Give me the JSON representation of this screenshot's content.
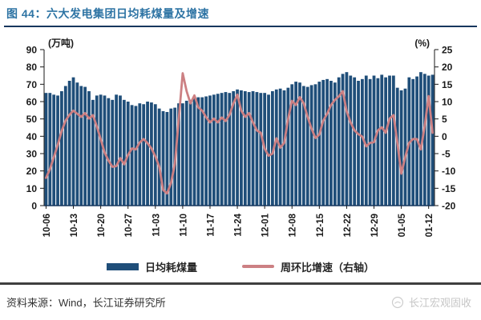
{
  "figure": {
    "title": "图 44：六大发电集团日均耗煤量及增速",
    "title_color": "#2E74A4",
    "source": "资料来源：Wind，长江证券研究所",
    "watermark": "长江宏观固收"
  },
  "chart_data": {
    "type": "bar+line combo",
    "grid": "off",
    "legend_position": "bottom",
    "left_axis": {
      "label": "(万吨)",
      "min": 0,
      "max": 90,
      "step": 10,
      "ticks": [
        90,
        80,
        70,
        60,
        50,
        40,
        30,
        20,
        10,
        0
      ]
    },
    "right_axis": {
      "label": "(%)",
      "min": -20,
      "max": 25,
      "step": 5,
      "ticks": [
        25,
        20,
        15,
        10,
        5,
        0,
        -5,
        -10,
        -15,
        -20
      ]
    },
    "x_tick_interval": 7,
    "x_tick_labels": [
      "10-06",
      "10-13",
      "10-20",
      "10-27",
      "11-03",
      "11-10",
      "11-17",
      "11-24",
      "12-01",
      "12-08",
      "12-15",
      "12-22",
      "12-29",
      "01-05",
      "01-12"
    ],
    "categories": [
      "10-06",
      "10-07",
      "10-08",
      "10-09",
      "10-10",
      "10-11",
      "10-12",
      "10-13",
      "10-14",
      "10-15",
      "10-16",
      "10-17",
      "10-18",
      "10-19",
      "10-20",
      "10-21",
      "10-22",
      "10-23",
      "10-24",
      "10-25",
      "10-26",
      "10-27",
      "10-28",
      "10-29",
      "10-30",
      "10-31",
      "11-01",
      "11-02",
      "11-03",
      "11-04",
      "11-05",
      "11-06",
      "11-07",
      "11-08",
      "11-09",
      "11-10",
      "11-11",
      "11-12",
      "11-13",
      "11-14",
      "11-15",
      "11-16",
      "11-17",
      "11-18",
      "11-19",
      "11-20",
      "11-21",
      "11-22",
      "11-23",
      "11-24",
      "11-25",
      "11-26",
      "11-27",
      "11-28",
      "11-29",
      "11-30",
      "12-01",
      "12-02",
      "12-03",
      "12-04",
      "12-05",
      "12-06",
      "12-07",
      "12-08",
      "12-09",
      "12-10",
      "12-11",
      "12-12",
      "12-13",
      "12-14",
      "12-15",
      "12-16",
      "12-17",
      "12-18",
      "12-19",
      "12-20",
      "12-21",
      "12-22",
      "12-23",
      "12-24",
      "12-25",
      "12-26",
      "12-27",
      "12-28",
      "12-29",
      "12-30",
      "12-31",
      "01-01",
      "01-02",
      "01-03",
      "01-04",
      "01-05",
      "01-06",
      "01-07",
      "01-08",
      "01-09",
      "01-10",
      "01-11",
      "01-12",
      "01-13"
    ],
    "series": [
      {
        "name": "日均耗煤量",
        "type": "bar",
        "axis": "left",
        "color": "#1F4E79",
        "values": [
          65,
          65,
          64,
          63.5,
          66,
          69,
          72,
          74,
          71,
          69,
          68.5,
          66,
          61,
          63.5,
          64,
          63.5,
          62,
          61,
          64,
          63.5,
          61,
          60,
          58,
          57.5,
          59,
          58.5,
          60,
          59.5,
          58.5,
          56,
          54.5,
          54,
          56,
          56.5,
          59,
          59,
          60.5,
          61,
          62,
          62.5,
          62.5,
          63,
          63.5,
          64,
          64.5,
          65,
          65.5,
          65,
          66,
          67,
          66.5,
          66,
          65.5,
          66,
          65.5,
          65,
          65,
          64,
          66,
          67,
          67.5,
          66.5,
          68,
          70,
          71.5,
          71,
          69,
          68.5,
          69.5,
          70,
          71.5,
          72.5,
          73,
          72,
          71,
          74,
          76,
          77,
          75,
          74,
          72,
          73,
          75,
          73,
          75,
          73.5,
          75.5,
          74,
          75,
          75,
          68,
          66.5,
          67.5,
          74,
          73,
          74.5,
          77,
          76,
          75,
          75.5
        ]
      },
      {
        "name": "周环比增速（右轴）",
        "type": "line",
        "axis": "right",
        "color": "#CC8083",
        "values": [
          -12,
          -9.5,
          -6,
          -2.5,
          1.5,
          4.5,
          6.2,
          7.4,
          6.5,
          5.6,
          6.7,
          5.1,
          6.1,
          2.9,
          -0.8,
          -4.7,
          -7,
          -8.8,
          -8.6,
          -6.3,
          -8.1,
          -5.4,
          -3.5,
          -3.8,
          -1.8,
          -0.8,
          -2,
          -3.5,
          -5.8,
          -8.8,
          -15.5,
          -16.5,
          -13.5,
          -8,
          5,
          18.2,
          13,
          9.5,
          11.8,
          8.3,
          7.4,
          5.5,
          4,
          5.1,
          4,
          5.4,
          4.4,
          6.2,
          9.5,
          12,
          7.4,
          5.6,
          6.7,
          4,
          1.7,
          1,
          -3.6,
          -5.6,
          -5,
          -0.6,
          -3.3,
          -1.9,
          5,
          10.2,
          9,
          11.3,
          9.5,
          5.6,
          2.2,
          -0.5,
          0.5,
          4.5,
          6.5,
          9,
          10.5,
          11.5,
          13,
          7.2,
          4,
          1.7,
          0.6,
          -0.1,
          -2.9,
          -1.9,
          -1.7,
          1.7,
          2.6,
          1,
          5.1,
          6.1,
          -1.9,
          -10.8,
          -6,
          -1.9,
          -0.8,
          -0.8,
          -3.8,
          3,
          11.6,
          1
        ]
      }
    ]
  }
}
